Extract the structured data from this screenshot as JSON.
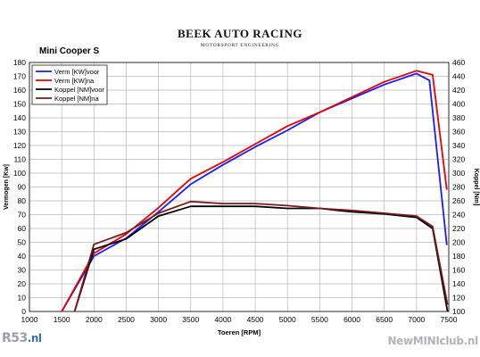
{
  "brand": {
    "title": "BEEK AUTO RACING",
    "subtitle": "MOTORSPORT ENGINEERING"
  },
  "watermarks": {
    "left_main": "R53",
    "left_tld": ".nl",
    "right": "NewMINIclub.nl"
  },
  "colors": {
    "power_before": "#1a1aff",
    "power_after": "#e60000",
    "torque_before": "#000000",
    "torque_after": "#7a1a1a"
  },
  "chart_data": {
    "type": "line",
    "title": "Mini Cooper S",
    "xlabel": "Toeren [RPM]",
    "ylabel": "Vermogen [Kw]",
    "y2label": "Koppel [Nm]",
    "xlim": [
      1000,
      7500
    ],
    "ylim": [
      0,
      180
    ],
    "y2lim": [
      100,
      460
    ],
    "xticks": [
      1000,
      1500,
      2000,
      2500,
      3000,
      3500,
      4000,
      4500,
      5000,
      5500,
      6000,
      6500,
      7000,
      7500
    ],
    "yticks": [
      0,
      10,
      20,
      30,
      40,
      50,
      60,
      70,
      80,
      90,
      100,
      110,
      120,
      130,
      140,
      150,
      160,
      170,
      180
    ],
    "y2ticks": [
      100,
      120,
      140,
      160,
      180,
      200,
      220,
      240,
      260,
      280,
      300,
      320,
      340,
      360,
      380,
      400,
      420,
      440,
      460
    ],
    "grid": true,
    "legend_position": "top-left",
    "series": [
      {
        "name": "Verm [KW]voor",
        "axis": "left",
        "color": "#1a1aff",
        "x": [
          1500,
          2000,
          2500,
          3000,
          3500,
          4000,
          4500,
          5000,
          5500,
          6000,
          6500,
          7000,
          7200,
          7470
        ],
        "y": [
          0,
          40,
          53,
          72,
          92,
          106,
          119,
          131,
          144,
          154,
          164,
          172,
          167,
          48
        ]
      },
      {
        "name": "Verm [KW]na",
        "axis": "left",
        "color": "#e60000",
        "x": [
          1500,
          2000,
          2500,
          3000,
          3500,
          4000,
          4500,
          5000,
          5500,
          6000,
          6500,
          7000,
          7250,
          7470
        ],
        "y": [
          0,
          42,
          56,
          75,
          96,
          108,
          121,
          134,
          144,
          155,
          166,
          174,
          171,
          88
        ]
      },
      {
        "name": "Koppel [NM]voor",
        "axis": "right",
        "color": "#000000",
        "x": [
          1700,
          2000,
          2500,
          3000,
          3500,
          4000,
          4500,
          5000,
          5500,
          6000,
          6500,
          7000,
          7250,
          7480
        ],
        "y": [
          100,
          190,
          205,
          238,
          252,
          252,
          252,
          249,
          249,
          244,
          241,
          236,
          220,
          100
        ]
      },
      {
        "name": "Koppel [NM]na",
        "axis": "right",
        "color": "#7a1a1a",
        "x": [
          1700,
          2000,
          2500,
          3000,
          3500,
          4000,
          4500,
          5000,
          5500,
          6000,
          6500,
          7000,
          7250,
          7480
        ],
        "y": [
          100,
          197,
          214,
          242,
          259,
          256,
          256,
          253,
          249,
          246,
          242,
          238,
          223,
          110
        ]
      }
    ]
  }
}
